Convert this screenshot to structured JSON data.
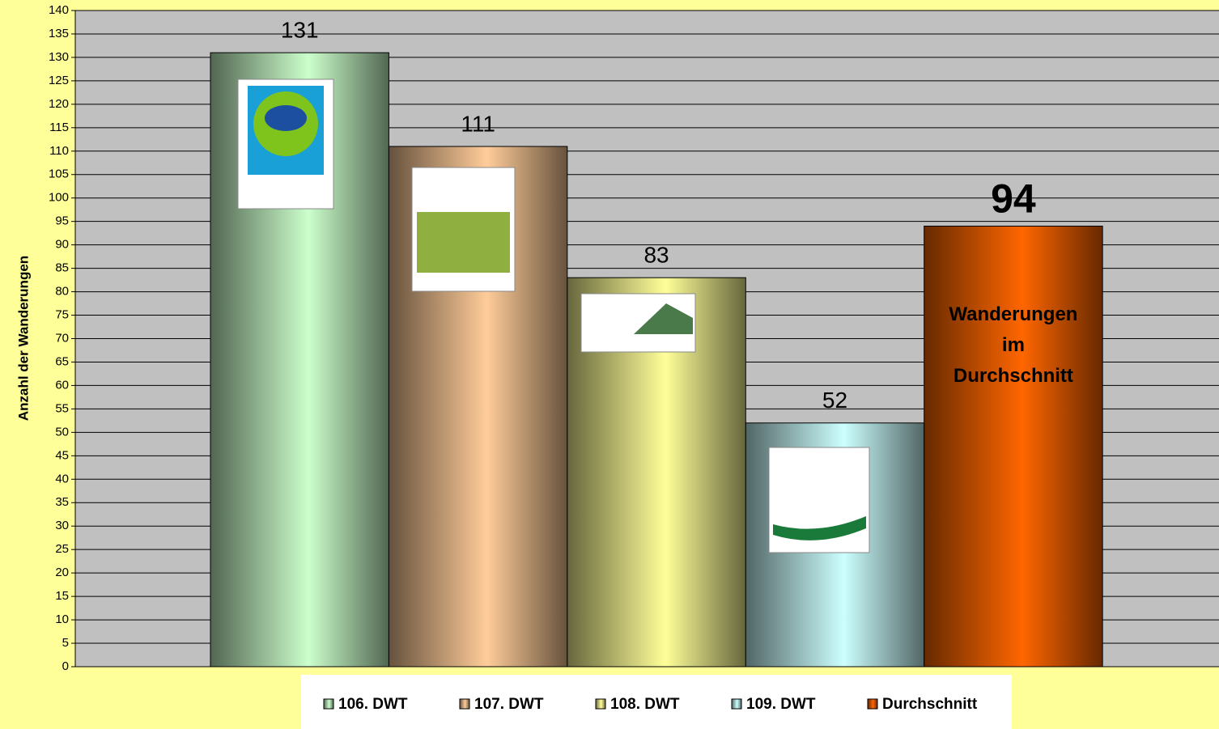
{
  "chart_data": {
    "type": "bar",
    "y_label": "Anzahl der Wanderungen",
    "categories": [
      null
    ],
    "series": [
      {
        "name": "106. DWT",
        "color": "#ccffcc",
        "values": [
          131
        ]
      },
      {
        "name": "107. DWT",
        "color": "#ffcc99",
        "values": [
          111
        ]
      },
      {
        "name": "108. DWT",
        "color": "#ffff99",
        "values": [
          83
        ]
      },
      {
        "name": "109. DWT",
        "color": "#ccffff",
        "values": [
          52
        ]
      },
      {
        "name": "Durchschnitt",
        "color": "#ff6600",
        "values": [
          94
        ],
        "highlight": true,
        "annotation": [
          "Wanderungen",
          "im",
          "Durchschnitt"
        ]
      }
    ],
    "ylim": [
      0,
      140
    ],
    "yticks": [
      0,
      5,
      10,
      15,
      20,
      25,
      30,
      35,
      40,
      45,
      50,
      55,
      60,
      65,
      70,
      75,
      80,
      85,
      90,
      95,
      100,
      105,
      110,
      115,
      120,
      125,
      130,
      135,
      140
    ],
    "grid": true,
    "legend": "bottom"
  }
}
